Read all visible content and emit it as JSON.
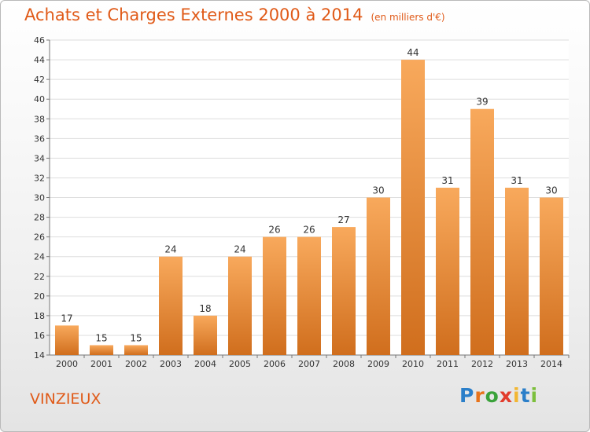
{
  "title": "Achats et Charges Externes 2000 à 2014",
  "subtitle": "(en milliers d'€)",
  "commune": "VINZIEUX",
  "logo": {
    "text": "Proxiti",
    "letters": [
      "P",
      "r",
      "o",
      "x",
      "i",
      "t",
      "i"
    ],
    "colors": [
      "#2b7fc9",
      "#e8731a",
      "#3aa23a",
      "#e23c2c",
      "#f2b632",
      "#2b7fc9",
      "#7cbf3c"
    ]
  },
  "colors": {
    "accent": "#e05a18",
    "bar_light": "#f6a55b",
    "bar_dark": "#cf6c1a",
    "grid": "#dddddd"
  },
  "chart_data": {
    "type": "bar",
    "title": "Achats et Charges Externes 2000 à 2014",
    "categories": [
      "2000",
      "2001",
      "2002",
      "2003",
      "2004",
      "2005",
      "2006",
      "2007",
      "2008",
      "2009",
      "2010",
      "2011",
      "2012",
      "2013",
      "2014"
    ],
    "values": [
      17,
      15,
      15,
      24,
      18,
      24,
      26,
      26,
      27,
      30,
      44,
      31,
      39,
      31,
      30
    ],
    "ylim": [
      14,
      46
    ],
    "yticks": [
      14,
      16,
      18,
      20,
      22,
      24,
      26,
      28,
      30,
      32,
      34,
      36,
      38,
      40,
      42,
      44,
      46
    ],
    "grid": true
  }
}
